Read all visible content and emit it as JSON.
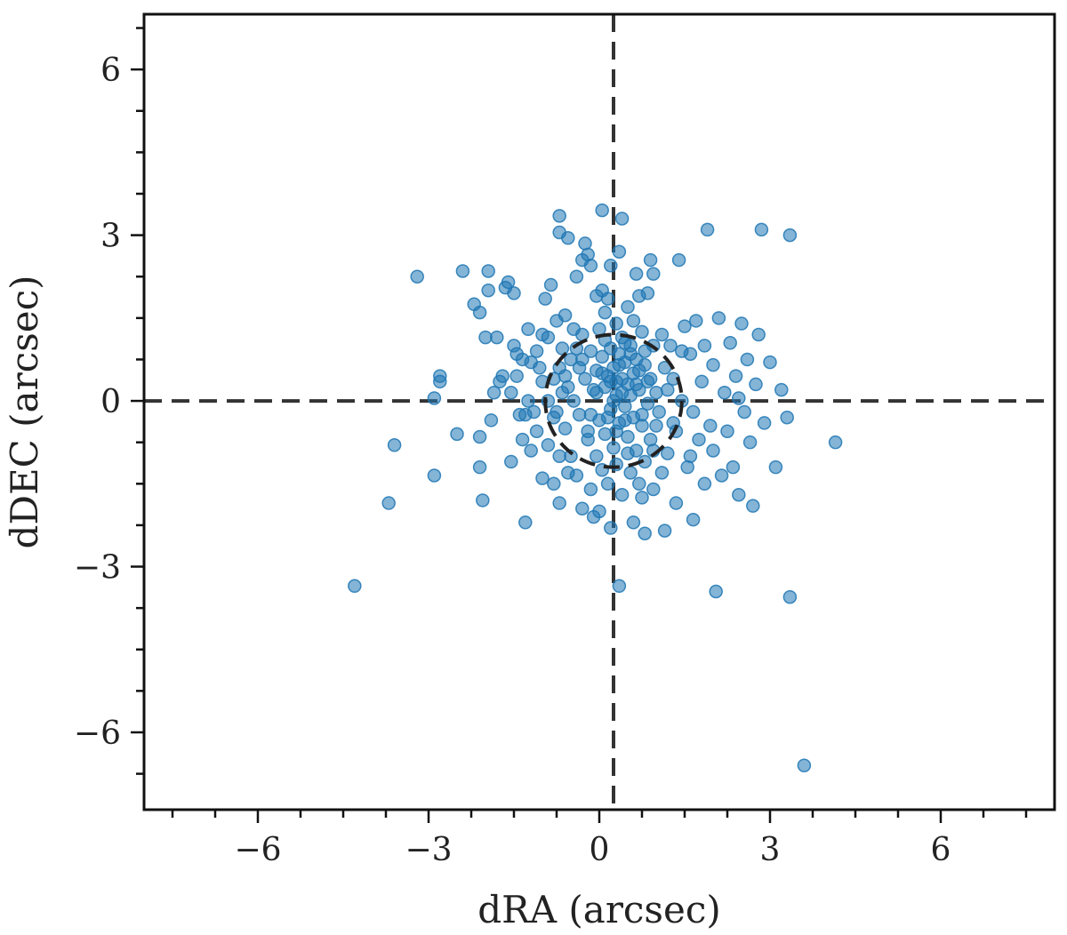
{
  "chart_data": {
    "type": "scatter",
    "xlabel": "dRA (arcsec)",
    "ylabel": "dDEC (arcsec)",
    "xlim": [
      -8.0,
      8.0
    ],
    "ylim": [
      -7.4,
      7.0
    ],
    "xticks": [
      -6,
      -3,
      0,
      3,
      6
    ],
    "xtick_labels": [
      "−6",
      "−3",
      "0",
      "3",
      "6"
    ],
    "yticks": [
      -6,
      -3,
      0,
      3,
      6
    ],
    "ytick_labels": [
      "−6",
      "−3",
      "0",
      "3",
      "6"
    ],
    "minor_tick_step": 0.75,
    "grid": false,
    "marker_color": "#1f77b4",
    "reference_lines": {
      "x": 0.25,
      "y": 0.0,
      "style": "dashed",
      "color": "#333333"
    },
    "reference_circle": {
      "cx": 0.25,
      "cy": 0.0,
      "r": 1.2,
      "style": "dashed",
      "color": "#222222"
    },
    "series": [
      {
        "values": [
          [
            -4.3,
            -3.35
          ],
          [
            -3.2,
            2.25
          ],
          [
            -3.7,
            -1.85
          ],
          [
            -3.6,
            -0.8
          ],
          [
            -2.9,
            -1.35
          ],
          [
            -2.9,
            0.05
          ],
          [
            -2.8,
            0.35
          ],
          [
            -2.8,
            0.45
          ],
          [
            -2.4,
            2.35
          ],
          [
            -2.5,
            -0.6
          ],
          [
            -2.2,
            1.75
          ],
          [
            -2.1,
            1.6
          ],
          [
            -2.1,
            -0.65
          ],
          [
            -2.1,
            -1.2
          ],
          [
            -2.05,
            -1.8
          ],
          [
            -2.0,
            1.15
          ],
          [
            -1.95,
            2.35
          ],
          [
            -1.95,
            2.0
          ],
          [
            -1.85,
            0.15
          ],
          [
            -1.8,
            1.15
          ],
          [
            -1.75,
            0.35
          ],
          [
            -1.7,
            0.45
          ],
          [
            -1.65,
            2.05
          ],
          [
            -1.6,
            2.15
          ],
          [
            -1.55,
            0.15
          ],
          [
            -1.55,
            -1.1
          ],
          [
            -1.5,
            1.95
          ],
          [
            -1.5,
            1.0
          ],
          [
            -1.45,
            0.85
          ],
          [
            -1.45,
            0.45
          ],
          [
            -1.4,
            -0.25
          ],
          [
            -1.35,
            0.75
          ],
          [
            -1.35,
            -0.7
          ],
          [
            -1.3,
            -0.25
          ],
          [
            -1.3,
            -2.2
          ],
          [
            -1.25,
            1.3
          ],
          [
            -1.25,
            0.0
          ],
          [
            -1.2,
            0.7
          ],
          [
            -1.2,
            -0.9
          ],
          [
            -1.15,
            -0.2
          ],
          [
            -1.1,
            0.9
          ],
          [
            -1.1,
            -0.55
          ],
          [
            -1.0,
            1.2
          ],
          [
            -1.0,
            0.35
          ],
          [
            -1.0,
            -1.4
          ],
          [
            -0.95,
            1.85
          ],
          [
            -0.9,
            1.15
          ],
          [
            -0.9,
            -0.8
          ],
          [
            -0.85,
            2.1
          ],
          [
            -0.8,
            0.4
          ],
          [
            -0.8,
            -1.5
          ],
          [
            -0.75,
            1.45
          ],
          [
            -0.75,
            -0.2
          ],
          [
            -0.7,
            3.35
          ],
          [
            -0.7,
            3.05
          ],
          [
            -0.7,
            0.6
          ],
          [
            -0.7,
            -1.85
          ],
          [
            -0.65,
            0.95
          ],
          [
            -0.65,
            0.15
          ],
          [
            -0.6,
            1.55
          ],
          [
            -0.6,
            -0.5
          ],
          [
            -0.55,
            2.95
          ],
          [
            -0.55,
            0.25
          ],
          [
            -0.5,
            0.75
          ],
          [
            -0.5,
            -1.0
          ],
          [
            -0.45,
            1.3
          ],
          [
            -0.45,
            0.0
          ],
          [
            -0.4,
            2.25
          ],
          [
            -0.4,
            -1.35
          ],
          [
            -0.35,
            0.6
          ],
          [
            -0.35,
            -0.25
          ],
          [
            -0.3,
            2.55
          ],
          [
            -0.3,
            1.2
          ],
          [
            -0.3,
            -1.95
          ],
          [
            -0.25,
            2.85
          ],
          [
            -0.25,
            0.4
          ],
          [
            -0.2,
            2.65
          ],
          [
            -0.2,
            -0.7
          ],
          [
            -0.15,
            2.45
          ],
          [
            -0.15,
            0.9
          ],
          [
            -0.15,
            -1.6
          ],
          [
            -0.1,
            0.2
          ],
          [
            -0.1,
            -2.1
          ],
          [
            -0.05,
            1.9
          ],
          [
            -0.05,
            0.55
          ],
          [
            -0.05,
            -1.0
          ],
          [
            0.0,
            1.3
          ],
          [
            0.0,
            -0.35
          ],
          [
            0.0,
            -2.0
          ],
          [
            0.05,
            3.45
          ],
          [
            0.05,
            2.0
          ],
          [
            0.05,
            0.8
          ],
          [
            0.05,
            -1.25
          ],
          [
            0.1,
            1.6
          ],
          [
            0.1,
            0.25
          ],
          [
            0.1,
            -0.6
          ],
          [
            0.15,
            1.85
          ],
          [
            0.15,
            0.45
          ],
          [
            0.15,
            -1.5
          ],
          [
            0.2,
            2.45
          ],
          [
            0.2,
            0.95
          ],
          [
            0.2,
            -0.15
          ],
          [
            0.2,
            -2.3
          ],
          [
            0.25,
            0.6
          ],
          [
            0.25,
            -0.85
          ],
          [
            0.3,
            1.4
          ],
          [
            0.3,
            0.1
          ],
          [
            0.3,
            -1.15
          ],
          [
            0.35,
            2.7
          ],
          [
            0.35,
            0.85
          ],
          [
            0.35,
            -0.4
          ],
          [
            0.35,
            -3.35
          ],
          [
            0.4,
            3.3
          ],
          [
            0.4,
            1.15
          ],
          [
            0.4,
            0.4
          ],
          [
            0.4,
            -1.7
          ],
          [
            0.45,
            0.7
          ],
          [
            0.45,
            -0.1
          ],
          [
            0.5,
            1.7
          ],
          [
            0.5,
            0.3
          ],
          [
            0.5,
            -0.65
          ],
          [
            0.55,
            1.0
          ],
          [
            0.55,
            -1.3
          ],
          [
            0.6,
            0.5
          ],
          [
            0.6,
            -0.3
          ],
          [
            0.6,
            -2.2
          ],
          [
            0.65,
            2.3
          ],
          [
            0.65,
            0.75
          ],
          [
            0.65,
            -0.9
          ],
          [
            0.7,
            1.9
          ],
          [
            0.7,
            0.2
          ],
          [
            0.7,
            -1.5
          ],
          [
            0.75,
            1.25
          ],
          [
            0.75,
            -0.45
          ],
          [
            0.8,
            0.9
          ],
          [
            0.8,
            -1.1
          ],
          [
            0.8,
            -2.4
          ],
          [
            0.85,
            1.95
          ],
          [
            0.85,
            0.35
          ],
          [
            0.9,
            2.55
          ],
          [
            0.9,
            -0.7
          ],
          [
            0.95,
            2.3
          ],
          [
            0.95,
            1.0
          ],
          [
            0.95,
            -1.6
          ],
          [
            1.0,
            0.15
          ],
          [
            1.05,
            -0.2
          ],
          [
            1.1,
            1.2
          ],
          [
            1.1,
            -1.3
          ],
          [
            1.15,
            0.6
          ],
          [
            1.15,
            -2.35
          ],
          [
            1.2,
            -0.95
          ],
          [
            1.25,
            1.0
          ],
          [
            1.3,
            0.4
          ],
          [
            1.35,
            -0.55
          ],
          [
            1.35,
            -1.85
          ],
          [
            1.4,
            2.55
          ],
          [
            1.45,
            0.0
          ],
          [
            1.5,
            1.35
          ],
          [
            1.55,
            -1.2
          ],
          [
            1.6,
            0.85
          ],
          [
            1.65,
            -0.2
          ],
          [
            1.65,
            -2.15
          ],
          [
            1.7,
            1.45
          ],
          [
            1.75,
            -0.7
          ],
          [
            1.8,
            0.35
          ],
          [
            1.85,
            1.0
          ],
          [
            1.85,
            -1.5
          ],
          [
            1.9,
            3.1
          ],
          [
            1.95,
            -0.45
          ],
          [
            2.0,
            0.65
          ],
          [
            2.0,
            -0.9
          ],
          [
            2.05,
            -3.45
          ],
          [
            2.1,
            1.5
          ],
          [
            2.15,
            -1.35
          ],
          [
            2.2,
            0.15
          ],
          [
            2.25,
            -0.55
          ],
          [
            2.3,
            1.05
          ],
          [
            2.35,
            -1.2
          ],
          [
            2.4,
            0.45
          ],
          [
            2.45,
            -1.7
          ],
          [
            2.5,
            1.4
          ],
          [
            2.55,
            -0.2
          ],
          [
            2.6,
            0.75
          ],
          [
            2.65,
            -0.75
          ],
          [
            2.7,
            -1.9
          ],
          [
            2.75,
            0.3
          ],
          [
            2.8,
            1.2
          ],
          [
            2.85,
            3.1
          ],
          [
            2.9,
            -0.4
          ],
          [
            3.0,
            0.7
          ],
          [
            3.1,
            -1.2
          ],
          [
            3.2,
            0.2
          ],
          [
            3.3,
            -0.3
          ],
          [
            3.35,
            3.0
          ],
          [
            3.35,
            -3.55
          ],
          [
            3.6,
            -6.6
          ],
          [
            4.15,
            -0.75
          ],
          [
            -0.8,
            -0.3
          ],
          [
            -0.6,
            0.45
          ],
          [
            -0.3,
            0.75
          ],
          [
            0.05,
            0.5
          ],
          [
            0.35,
            0.65
          ],
          [
            0.55,
            0.1
          ],
          [
            0.75,
            -0.25
          ],
          [
            0.9,
            0.4
          ],
          [
            1.0,
            -0.45
          ],
          [
            0.15,
            -0.3
          ],
          [
            -0.2,
            -0.55
          ],
          [
            0.6,
            1.45
          ],
          [
            0.45,
            1.05
          ],
          [
            0.25,
            0.0
          ],
          [
            0.65,
            0.3
          ],
          [
            0.8,
            0.65
          ],
          [
            -0.05,
            0.15
          ],
          [
            0.3,
            -0.55
          ],
          [
            0.1,
            1.1
          ],
          [
            0.5,
            -0.95
          ],
          [
            -0.4,
            0.95
          ],
          [
            0.95,
            -0.9
          ],
          [
            1.2,
            0.2
          ],
          [
            -0.9,
            0.0
          ],
          [
            0.2,
            0.35
          ],
          [
            0.4,
            0.15
          ],
          [
            0.7,
            0.55
          ],
          [
            0.55,
            0.85
          ],
          [
            0.3,
            0.35
          ],
          [
            0.45,
            -0.35
          ],
          [
            -0.15,
            -0.25
          ],
          [
            0.85,
            -0.05
          ],
          [
            1.3,
            -0.4
          ],
          [
            -1.05,
            0.6
          ],
          [
            -0.55,
            -1.3
          ],
          [
            0.75,
            -1.75
          ],
          [
            1.45,
            0.9
          ],
          [
            -1.9,
            -0.35
          ],
          [
            2.45,
            0.05
          ],
          [
            -0.7,
            -1.0
          ],
          [
            1.6,
            -1.0
          ]
        ]
      }
    ]
  }
}
